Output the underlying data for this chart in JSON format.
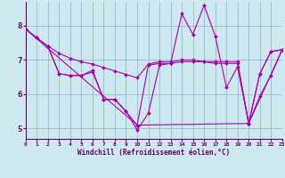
{
  "bg_color": "#cde8ee",
  "line_color": "#aa00aa",
  "grid_color": "#99bbcc",
  "xlim": [
    0,
    23
  ],
  "ylim": [
    4.7,
    8.7
  ],
  "yticks": [
    5,
    6,
    7,
    8
  ],
  "xticks": [
    0,
    1,
    2,
    3,
    4,
    5,
    6,
    7,
    8,
    9,
    10,
    11,
    12,
    13,
    14,
    15,
    16,
    17,
    18,
    19,
    20,
    21,
    22,
    23
  ],
  "xlabel": "Windchill (Refroidissement éolien,°C)",
  "lines": [
    {
      "x": [
        0,
        1,
        2,
        3,
        4,
        5,
        6,
        7,
        8,
        9,
        10,
        11,
        12,
        13,
        14,
        15,
        16,
        17,
        18,
        19,
        20,
        21,
        22,
        23
      ],
      "y": [
        7.9,
        7.65,
        7.4,
        6.6,
        6.55,
        6.55,
        6.7,
        5.85,
        5.85,
        5.5,
        4.95,
        5.45,
        6.85,
        6.9,
        8.35,
        7.75,
        8.6,
        7.7,
        6.2,
        6.8,
        5.15,
        5.95,
        6.55,
        7.3
      ]
    },
    {
      "x": [
        0,
        1,
        2,
        3,
        4,
        5,
        6,
        7,
        8,
        9,
        10,
        11,
        12,
        13,
        14,
        15,
        16,
        17,
        18,
        19,
        20,
        21,
        22,
        23
      ],
      "y": [
        7.9,
        7.65,
        7.4,
        6.6,
        6.55,
        6.55,
        6.65,
        5.85,
        5.85,
        5.5,
        5.1,
        6.85,
        6.9,
        6.9,
        6.95,
        6.95,
        6.95,
        6.9,
        6.9,
        6.9,
        5.15,
        6.6,
        7.25,
        7.3
      ]
    },
    {
      "x": [
        2,
        3,
        4,
        5,
        6,
        7,
        8,
        9,
        10,
        11,
        12,
        13,
        14,
        15,
        16,
        17,
        18,
        19,
        20,
        21,
        22,
        23
      ],
      "y": [
        7.4,
        7.2,
        7.05,
        6.95,
        6.88,
        6.78,
        6.68,
        6.58,
        6.48,
        6.88,
        6.95,
        6.95,
        7.0,
        7.0,
        6.95,
        6.95,
        6.95,
        6.95,
        5.15,
        6.6,
        7.25,
        7.3
      ]
    },
    {
      "x": [
        0,
        10,
        20,
        23
      ],
      "y": [
        7.9,
        5.1,
        5.15,
        7.3
      ]
    }
  ]
}
